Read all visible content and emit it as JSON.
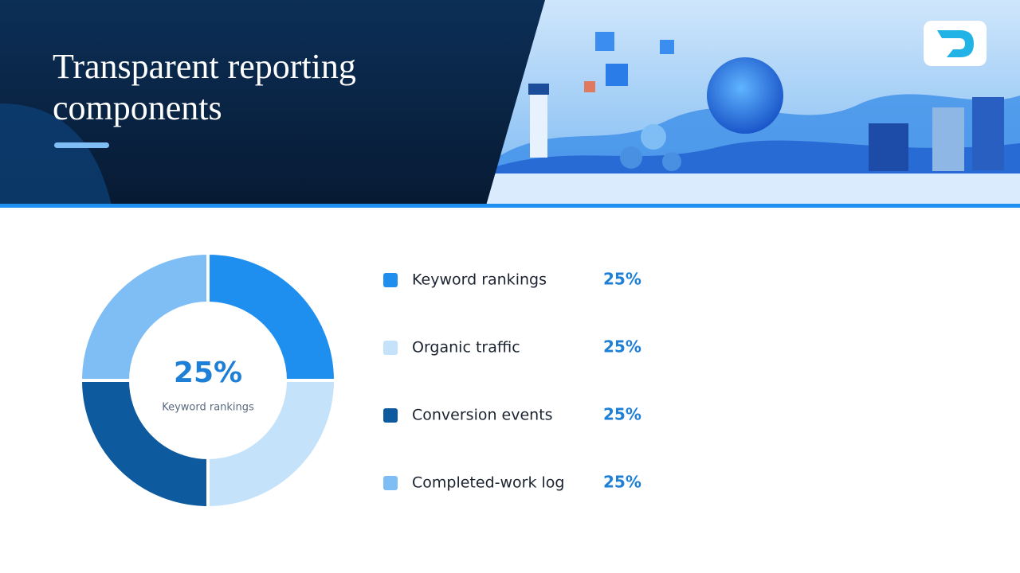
{
  "chart_data": {
    "type": "pie",
    "title": "Transparent reporting components",
    "categories": [
      "Keyword rankings",
      "Organic traffic",
      "Conversion events",
      "Completed-work log"
    ],
    "values": [
      25,
      25,
      25,
      25
    ],
    "value_labels": [
      "25%",
      "25%",
      "25%",
      "25%"
    ],
    "colors": [
      "#1f8fef",
      "#c5e2fb",
      "#0d5a9e",
      "#7fbef5"
    ],
    "donut": true
  }
}
